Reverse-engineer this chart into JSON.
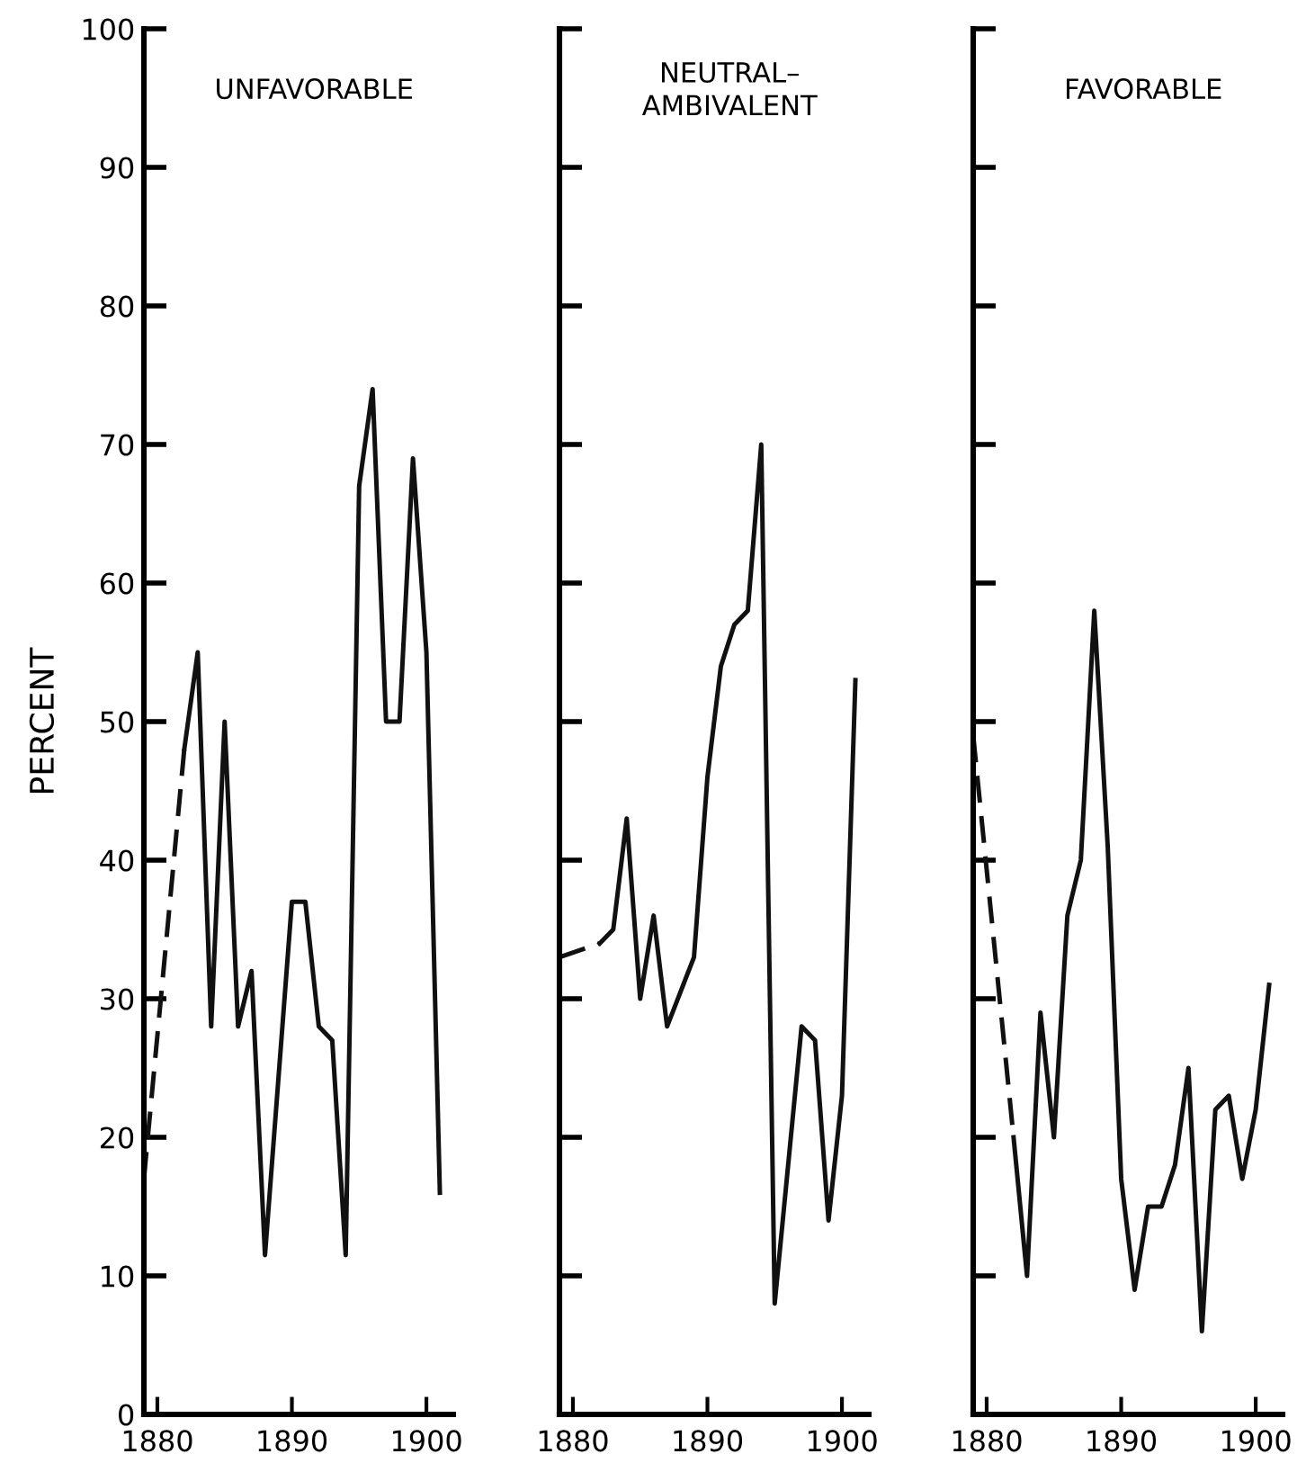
{
  "chart_data": [
    {
      "type": "line",
      "title": "UNFAVORABLE",
      "ylabel": "PERCENT",
      "xlim": [
        1879,
        1902
      ],
      "xticks": [
        1880,
        1890,
        1900
      ],
      "ylim": [
        0,
        100
      ],
      "yticks": [
        0,
        10,
        20,
        30,
        40,
        50,
        60,
        70,
        80,
        90,
        100
      ],
      "grid": false,
      "marker": "none",
      "series": [
        {
          "color": "#111111",
          "line_style": "dashed",
          "x": [
            1879,
            1882
          ],
          "values": [
            17,
            48
          ]
        },
        {
          "color": "#111111",
          "line_style": "solid",
          "x": [
            1882,
            1883,
            1884,
            1885,
            1886,
            1887,
            1888,
            1890,
            1891,
            1892,
            1893,
            1894,
            1895,
            1896,
            1897,
            1898,
            1899,
            1900,
            1901
          ],
          "values": [
            48,
            55,
            28,
            50,
            28,
            32,
            11.5,
            37,
            37,
            28,
            27,
            11.5,
            67,
            74,
            50,
            50,
            69,
            55,
            16
          ]
        }
      ]
    },
    {
      "type": "line",
      "title": "NEUTRAL–\nAMBIVALENT",
      "xlim": [
        1879,
        1902
      ],
      "xticks": [
        1880,
        1890,
        1900
      ],
      "ylim": [
        0,
        100
      ],
      "yticks": [
        0,
        10,
        20,
        30,
        40,
        50,
        60,
        70,
        80,
        90,
        100
      ],
      "tick_labels": "x",
      "grid": false,
      "marker": "none",
      "series": [
        {
          "color": "#111111",
          "line_style": "dashed",
          "x": [
            1879,
            1882
          ],
          "values": [
            33,
            34
          ]
        },
        {
          "color": "#111111",
          "line_style": "solid",
          "x": [
            1882,
            1883,
            1884,
            1885,
            1886,
            1887,
            1888,
            1889,
            1890,
            1891,
            1892,
            1893,
            1894,
            1895,
            1897,
            1898,
            1899,
            1900,
            1901
          ],
          "values": [
            34,
            35,
            43,
            30,
            36,
            28,
            30.5,
            33,
            46,
            54,
            57,
            58,
            70,
            8,
            28,
            27,
            14,
            23,
            53
          ]
        }
      ]
    },
    {
      "type": "line",
      "title": "FAVORABLE",
      "xlim": [
        1879,
        1902
      ],
      "xticks": [
        1880,
        1890,
        1900
      ],
      "ylim": [
        0,
        100
      ],
      "yticks": [
        0,
        10,
        20,
        30,
        40,
        50,
        60,
        70,
        80,
        90,
        100
      ],
      "tick_labels": "x",
      "grid": false,
      "marker": "none",
      "series": [
        {
          "color": "#111111",
          "line_style": "dashed",
          "x": [
            1879,
            1882
          ],
          "values": [
            49,
            20
          ]
        },
        {
          "color": "#111111",
          "line_style": "solid",
          "x": [
            1882,
            1883,
            1884,
            1885,
            1886,
            1887,
            1888,
            1889,
            1890,
            1891,
            1892,
            1893,
            1894,
            1895,
            1896,
            1897,
            1898,
            1899,
            1900,
            1901
          ],
          "values": [
            20,
            10,
            29,
            20,
            36,
            40,
            58,
            41,
            17,
            9,
            15,
            15,
            18,
            25,
            6,
            22,
            23,
            17,
            22,
            31
          ]
        }
      ]
    }
  ]
}
